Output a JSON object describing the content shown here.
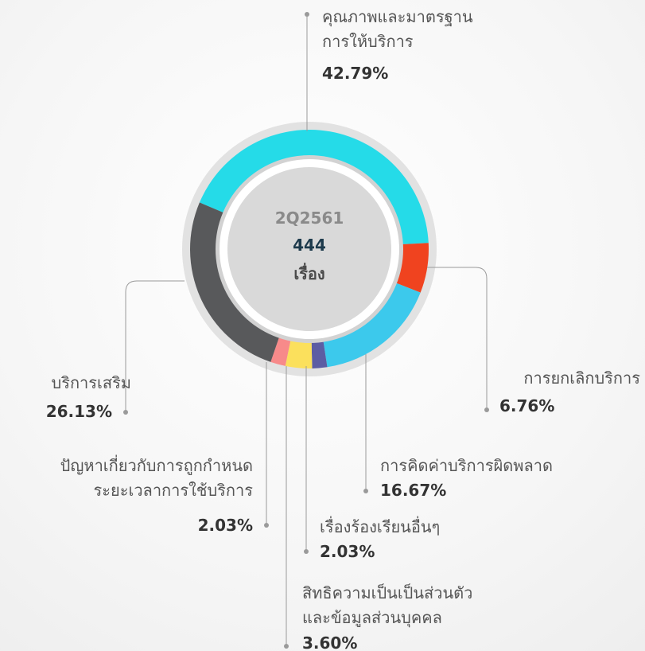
{
  "chart_data": {
    "type": "pie",
    "donut": true,
    "center_title": "2Q2561",
    "center_value": 444,
    "center_label": "เรื่อง",
    "categories": [
      "คุณภาพและมาตรฐาน\nการให้บริการ",
      "การยกเลิกบริการ",
      "การคิดค่าบริการผิดพลาด",
      "เรื่องร้องเรียนอื่นๆ",
      "สิทธิความเป็นเป็นส่วนตัว\nและข้อมูลส่วนบุคคล",
      "ปัญหาเกี่ยวกับการถูกกำหนด\nระยะเวลาการใช้บริการ",
      "บริการเสริม"
    ],
    "values": [
      42.79,
      6.76,
      16.67,
      2.03,
      3.6,
      2.03,
      26.13
    ],
    "value_labels": [
      "42.79%",
      "6.76%",
      "16.67%",
      "2.03%",
      "3.60%",
      "2.03%",
      "26.13%"
    ],
    "colors": [
      "#25dbe8",
      "#f0431f",
      "#3cc9ec",
      "#5c5da3",
      "#fbe05c",
      "#f78a8a",
      "#58595b"
    ]
  }
}
